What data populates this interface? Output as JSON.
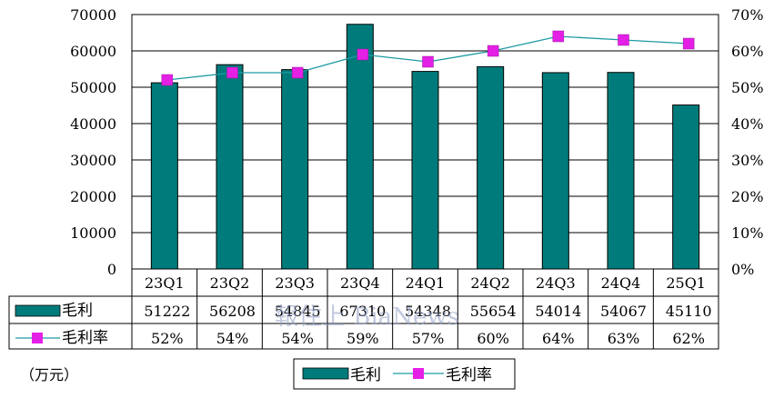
{
  "chart_data": {
    "type": "bar",
    "categories": [
      "23Q1",
      "23Q2",
      "23Q3",
      "23Q4",
      "24Q1",
      "24Q2",
      "24Q3",
      "24Q4",
      "25Q1"
    ],
    "series": [
      {
        "name": "毛利",
        "type": "bar",
        "axis": "left",
        "values": [
          51222,
          56208,
          54845,
          67310,
          54348,
          55654,
          54014,
          54067,
          45110
        ],
        "color": "#007b7b"
      },
      {
        "name": "毛利率",
        "type": "line",
        "axis": "right",
        "values": [
          0.52,
          0.54,
          0.54,
          0.59,
          0.57,
          0.6,
          0.64,
          0.63,
          0.62
        ],
        "color": "#e41fe6",
        "line_color": "#1e9aa3"
      }
    ],
    "left_axis": {
      "ylim": [
        0,
        70000
      ],
      "ticks": [
        "0",
        "10000",
        "20000",
        "30000",
        "40000",
        "50000",
        "60000",
        "70000"
      ]
    },
    "right_axis": {
      "ylim": [
        0,
        0.7
      ],
      "ticks": [
        "0%",
        "10%",
        "20%",
        "30%",
        "40%",
        "50%",
        "60%",
        "70%"
      ]
    },
    "table": {
      "rows": [
        {
          "label": "毛利",
          "cells": [
            "51222",
            "56208",
            "54845",
            "67310",
            "54348",
            "55654",
            "54014",
            "54067",
            "45110"
          ]
        },
        {
          "label": "毛利率",
          "cells": [
            "52%",
            "54%",
            "54%",
            "59%",
            "57%",
            "60%",
            "64%",
            "63%",
            "62%"
          ]
        }
      ]
    },
    "legend": {
      "position": "bottom",
      "items": [
        "毛利",
        "毛利率"
      ]
    },
    "unit_label": "（万元）",
    "watermark": "報住上 BiaNews"
  }
}
